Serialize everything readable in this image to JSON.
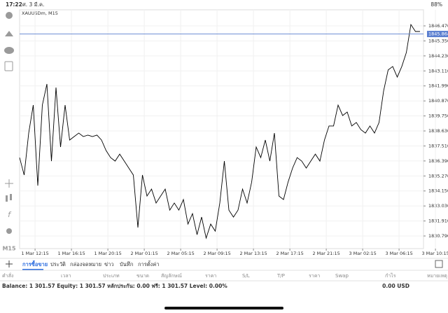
{
  "status_bar": {
    "time": "17:22",
    "date": "ศ. 3 มี.ค.",
    "battery": "88%"
  },
  "sidebar": {
    "timeframe": "M15"
  },
  "chart_data": {
    "type": "line",
    "title": "XAUUSDm, M15",
    "color": "#000000",
    "grid": true,
    "values": [
      1836.64,
      1835.34,
      1838.47,
      1840.56,
      1834.55,
      1840.56,
      1842.13,
      1836.38,
      1841.87,
      1837.43,
      1840.56,
      1837.95,
      1838.21,
      1838.47,
      1838.21,
      1838.32,
      1838.21,
      1838.32,
      1837.95,
      1837.17,
      1836.64,
      1836.38,
      1836.9,
      1836.38,
      1835.86,
      1835.34,
      1831.42,
      1835.34,
      1833.77,
      1834.29,
      1833.25,
      1833.77,
      1834.29,
      1832.72,
      1833.25,
      1832.72,
      1833.51,
      1831.68,
      1832.46,
      1830.89,
      1832.2,
      1830.63,
      1831.68,
      1831.15,
      1833.25,
      1836.38,
      1832.72,
      1832.2,
      1832.72,
      1834.29,
      1833.25,
      1834.81,
      1837.43,
      1836.64,
      1837.95,
      1836.38,
      1838.47,
      1833.77,
      1833.51,
      1834.81,
      1835.86,
      1836.64,
      1836.38,
      1835.86,
      1836.38,
      1836.9,
      1836.38,
      1837.95,
      1839.0,
      1839.0,
      1840.56,
      1839.78,
      1840.04,
      1839.0,
      1839.26,
      1838.73,
      1838.47,
      1839.0,
      1838.47,
      1839.26,
      1841.61,
      1843.18,
      1843.44,
      1842.65,
      1843.44,
      1844.48,
      1846.57,
      1846.05,
      1846.05
    ],
    "xlim": [
      0,
      88
    ],
    "xticks": [
      {
        "value": 3.4,
        "label": "1 Mar 12:15"
      },
      {
        "value": 11.4,
        "label": "1 Mar 16:15"
      },
      {
        "value": 19.4,
        "label": "1 Mar 20:15"
      },
      {
        "value": 27.4,
        "label": "2 Mar 01:15"
      },
      {
        "value": 35.4,
        "label": "2 Mar 05:15"
      },
      {
        "value": 43.4,
        "label": "2 Mar 09:15"
      },
      {
        "value": 51.4,
        "label": "2 Mar 13:15"
      },
      {
        "value": 59.4,
        "label": "2 Mar 17:15"
      },
      {
        "value": 67.4,
        "label": "2 Mar 21:15"
      },
      {
        "value": 75.4,
        "label": "3 Mar 02:15"
      },
      {
        "value": 83.4,
        "label": "3 Mar 06:15"
      },
      {
        "value": 91.4,
        "label": "3 Mar 10:15"
      }
    ],
    "ylim": [
      1829.85,
      1847.67
    ],
    "yticks": [
      {
        "value": 1846.47,
        "label": "1846.470"
      },
      {
        "value": 1845.35,
        "label": "1845.350"
      },
      {
        "value": 1844.23,
        "label": "1844.230"
      },
      {
        "value": 1843.11,
        "label": "1843.110"
      },
      {
        "value": 1841.99,
        "label": "1841.990"
      },
      {
        "value": 1840.87,
        "label": "1840.870"
      },
      {
        "value": 1839.75,
        "label": "1839.750"
      },
      {
        "value": 1838.63,
        "label": "1838.630"
      },
      {
        "value": 1837.51,
        "label": "1837.510"
      },
      {
        "value": 1836.39,
        "label": "1836.390"
      },
      {
        "value": 1835.27,
        "label": "1835.270"
      },
      {
        "value": 1834.15,
        "label": "1834.150"
      },
      {
        "value": 1833.03,
        "label": "1833.030"
      },
      {
        "value": 1831.91,
        "label": "1831.910"
      },
      {
        "value": 1830.79,
        "label": "1830.790"
      }
    ],
    "current_price": 1845.864,
    "current_price_color": "#5b7fd0"
  },
  "tabs": {
    "items": [
      "การซื้อขาย",
      "ประวัติ",
      "กล่องจดหมาย",
      "ข่าว",
      "บันทึก",
      "การตั้งค่า"
    ],
    "active_color": "#2f6fe0"
  },
  "table_header": [
    "คำสั่ง",
    "เวลา",
    "ประเภท",
    "ขนาด",
    "สัญลักษณ์",
    "ราคา",
    "S/L",
    "T/P",
    "ราคา",
    "Swap",
    "กำไร",
    "หมายเหตุ"
  ],
  "account": {
    "summary": "Balance: 1 301.57 Equity: 1 301.57 หลักประกัน: 0.00 ฟรี: 1 301.57 Level: 0.00%",
    "profit": "0.00 USD"
  }
}
